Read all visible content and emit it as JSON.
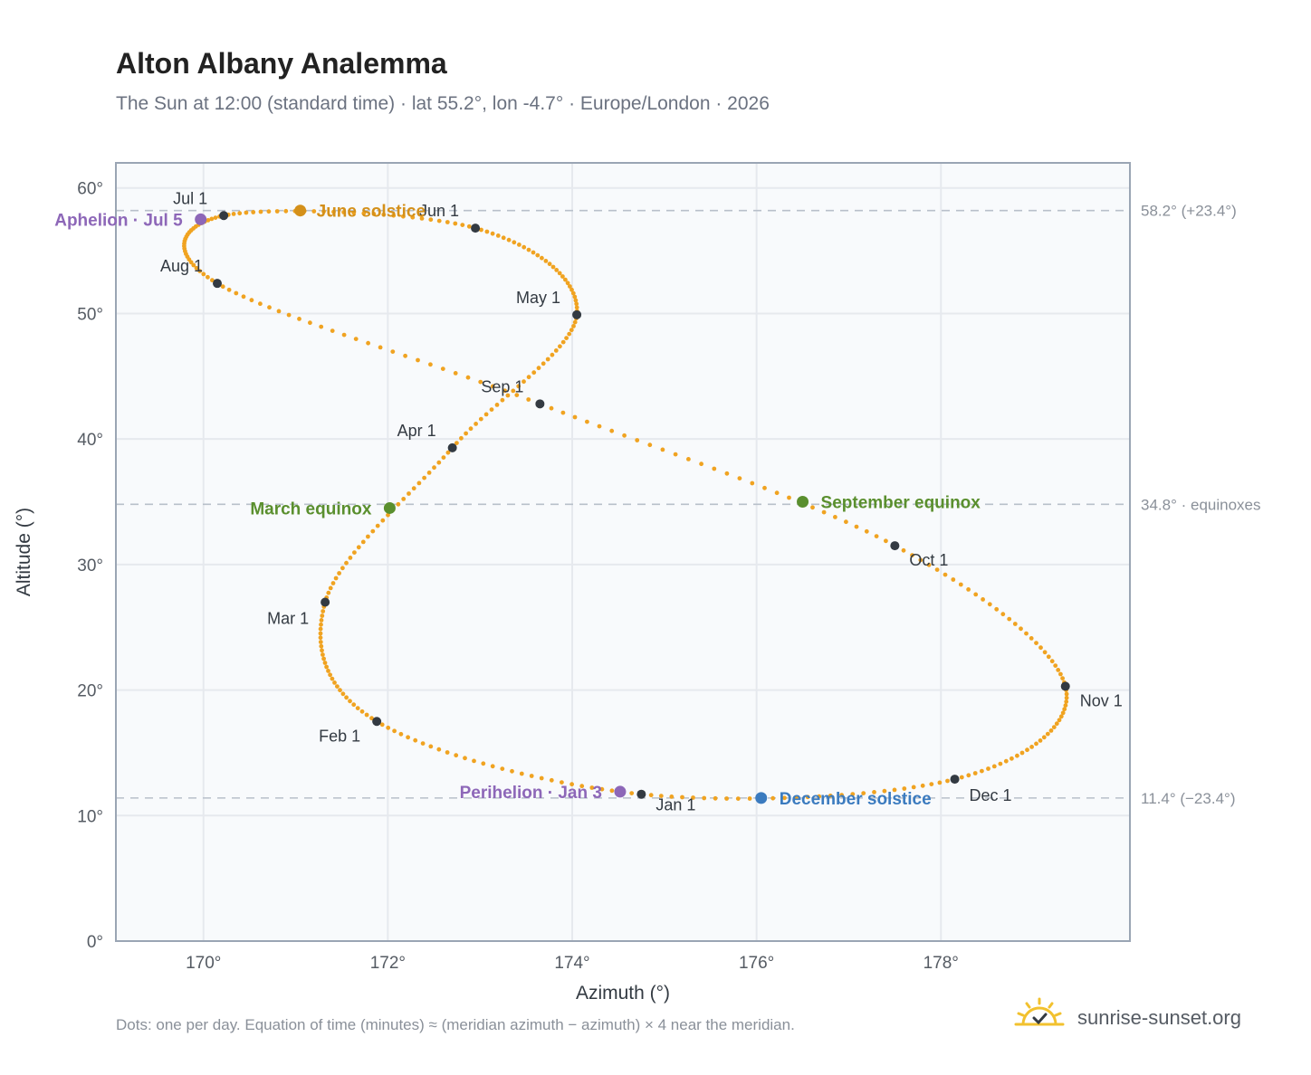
{
  "header": {
    "title": "Alton Albany Analemma",
    "subtitle": "The Sun at 12:00 (standard time) · lat 55.2°, lon -4.7° · Europe/London · 2026"
  },
  "footer": {
    "note": "Dots: one per day. Equation of time (minutes) ≈ (meridian azimuth − azimuth) × 4 near the meridian.",
    "brand": "sunrise-sunset.org"
  },
  "colors": {
    "path": "#f0a321",
    "month": "#333a42",
    "june": "#d4901a",
    "equinox": "#5a8f2e",
    "december": "#3b7bbf",
    "apsis": "#8d67b8",
    "grid": "#e6e9ee",
    "plot_bg": "#f8fafc",
    "frame": "#9aa5b4",
    "refline": "#b8c0ca"
  },
  "chart_data": {
    "type": "scatter",
    "xlabel": "Azimuth (°)",
    "ylabel": "Altitude (°)",
    "xlim": [
      169.05,
      180.05
    ],
    "ylim": [
      0,
      62
    ],
    "x_ticks": [
      170,
      172,
      174,
      176,
      178
    ],
    "x_tick_labels": [
      "170°",
      "172°",
      "174°",
      "176°",
      "178°"
    ],
    "y_ticks": [
      0,
      10,
      20,
      30,
      40,
      50,
      60
    ],
    "y_tick_labels": [
      "0°",
      "10°",
      "20°",
      "30°",
      "40°",
      "50°",
      "60°"
    ],
    "grid": true,
    "reference_lines": [
      {
        "y": 58.2,
        "label": "58.2° (+23.4°)"
      },
      {
        "y": 34.8,
        "label": "34.8° · equinoxes"
      },
      {
        "y": 11.4,
        "label": "11.4° (−23.4°)"
      }
    ],
    "months": [
      {
        "label": "Jan 1",
        "x": 174.75,
        "y": 11.7
      },
      {
        "label": "Feb 1",
        "x": 171.88,
        "y": 17.5
      },
      {
        "label": "Mar 1",
        "x": 171.32,
        "y": 27.0
      },
      {
        "label": "Apr 1",
        "x": 172.7,
        "y": 39.3
      },
      {
        "label": "May 1",
        "x": 174.05,
        "y": 49.9
      },
      {
        "label": "Jun 1",
        "x": 172.95,
        "y": 56.8
      },
      {
        "label": "Jul 1",
        "x": 170.22,
        "y": 57.8
      },
      {
        "label": "Aug 1",
        "x": 170.15,
        "y": 52.4
      },
      {
        "label": "Sep 1",
        "x": 173.65,
        "y": 42.8
      },
      {
        "label": "Oct 1",
        "x": 177.5,
        "y": 31.5
      },
      {
        "label": "Nov 1",
        "x": 179.35,
        "y": 20.3
      },
      {
        "label": "Dec 1",
        "x": 178.15,
        "y": 12.9
      }
    ],
    "events": [
      {
        "label": "June solstice",
        "x": 171.05,
        "y": 58.2
      },
      {
        "label": "March equinox",
        "x": 172.02,
        "y": 34.5
      },
      {
        "label": "September equinox",
        "x": 176.5,
        "y": 35.0
      },
      {
        "label": "December solstice",
        "x": 176.05,
        "y": 11.4
      },
      {
        "label": "Aphelion · Jul 5",
        "x": 169.97,
        "y": 57.5
      },
      {
        "label": "Perihelion · Jan 3",
        "x": 174.52,
        "y": 11.9
      }
    ],
    "path_points_per_day": 365
  }
}
